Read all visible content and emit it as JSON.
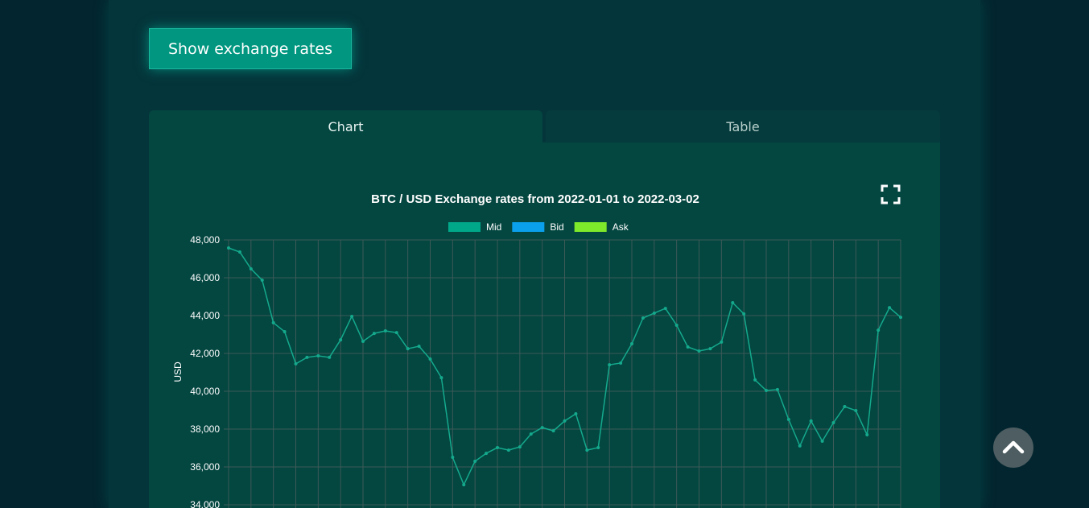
{
  "button": "Show exchange rates",
  "tabs": [
    "Chart",
    "Table"
  ],
  "chart_data": {
    "type": "line",
    "title": "BTC / USD Exchange rates from 2022-01-01 to 2022-03-02",
    "ylabel": "USD",
    "series": [
      {
        "name": "Mid",
        "color": "#14a98c",
        "values": [
          47575,
          47360,
          46470,
          45870,
          43620,
          43150,
          41450,
          41790,
          41870,
          41790,
          42720,
          43960,
          42640,
          43060,
          43190,
          43100,
          42250,
          42380,
          41700,
          40720,
          36510,
          35060,
          36300,
          36720,
          37020,
          36890,
          37060,
          37740,
          38080,
          37910,
          38430,
          38810,
          36890,
          37020,
          41400,
          41490,
          42510,
          43870,
          44130,
          44380,
          43490,
          42340,
          42130,
          42250,
          42600,
          44680,
          44090,
          40600,
          40040,
          40090,
          38510,
          37110,
          38430,
          37360,
          38340,
          39190,
          38980,
          37700,
          43230,
          44420,
          43910
        ]
      }
    ],
    "legend": [
      {
        "name": "Mid",
        "color": "#00a88a"
      },
      {
        "name": "Bid",
        "color": "#0aa0ec"
      },
      {
        "name": "Ask",
        "color": "#7ee82a"
      }
    ],
    "ylim": [
      34000,
      48000
    ],
    "yticks": [
      {
        "value": 34000,
        "label": "34,000"
      },
      {
        "value": 36000,
        "label": "36,000"
      },
      {
        "value": 38000,
        "label": "38,000"
      },
      {
        "value": 40000,
        "label": "40,000"
      },
      {
        "value": 42000,
        "label": "42,000"
      },
      {
        "value": 44000,
        "label": "44,000"
      },
      {
        "value": 46000,
        "label": "46,000"
      },
      {
        "value": 48000,
        "label": "48,000"
      }
    ],
    "grid": true
  }
}
